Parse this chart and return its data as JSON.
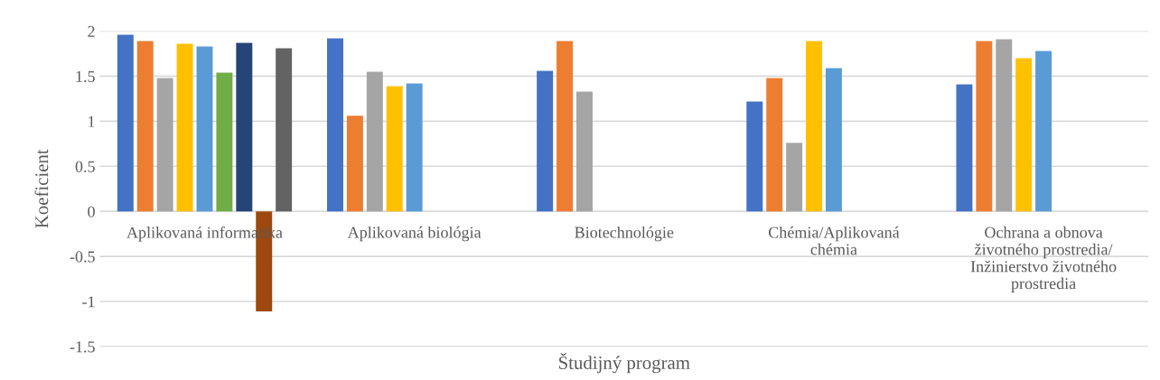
{
  "chart_data": {
    "type": "bar",
    "xlabel": "Študijný program",
    "ylabel": "Koeficient",
    "categories": [
      "Aplikovaná informatika",
      "Aplikovaná biológia",
      "Biotechnológie",
      "Chémia/Aplikovaná\nchémia",
      "Ochrana a obnova\nživotného prostredia/\nInžinierstvo životného\nprostredia"
    ],
    "series": [
      {
        "color": "#4472c4",
        "values": [
          1.96,
          1.92,
          1.56,
          1.22,
          1.41
        ]
      },
      {
        "color": "#ed7d31",
        "values": [
          1.89,
          1.06,
          1.89,
          1.48,
          1.89
        ]
      },
      {
        "color": "#a5a5a5",
        "values": [
          1.48,
          1.55,
          1.33,
          0.76,
          1.91
        ]
      },
      {
        "color": "#ffc000",
        "values": [
          1.86,
          1.39,
          null,
          1.89,
          1.7
        ]
      },
      {
        "color": "#5b9bd5",
        "values": [
          1.83,
          1.42,
          null,
          1.59,
          1.78
        ]
      },
      {
        "color": "#70ad47",
        "values": [
          1.54,
          null,
          null,
          null,
          null
        ]
      },
      {
        "color": "#264478",
        "values": [
          1.87,
          null,
          null,
          null,
          null
        ]
      },
      {
        "color": "#9e480e",
        "values": [
          -1.11,
          null,
          null,
          null,
          null
        ]
      },
      {
        "color": "#636363",
        "values": [
          1.81,
          null,
          null,
          null,
          null
        ]
      }
    ],
    "ylim": [
      -1.5,
      2
    ],
    "yticks": [
      -1.5,
      -1,
      -0.5,
      0,
      0.5,
      1,
      1.5,
      2
    ],
    "grid": "y",
    "legend": false
  }
}
